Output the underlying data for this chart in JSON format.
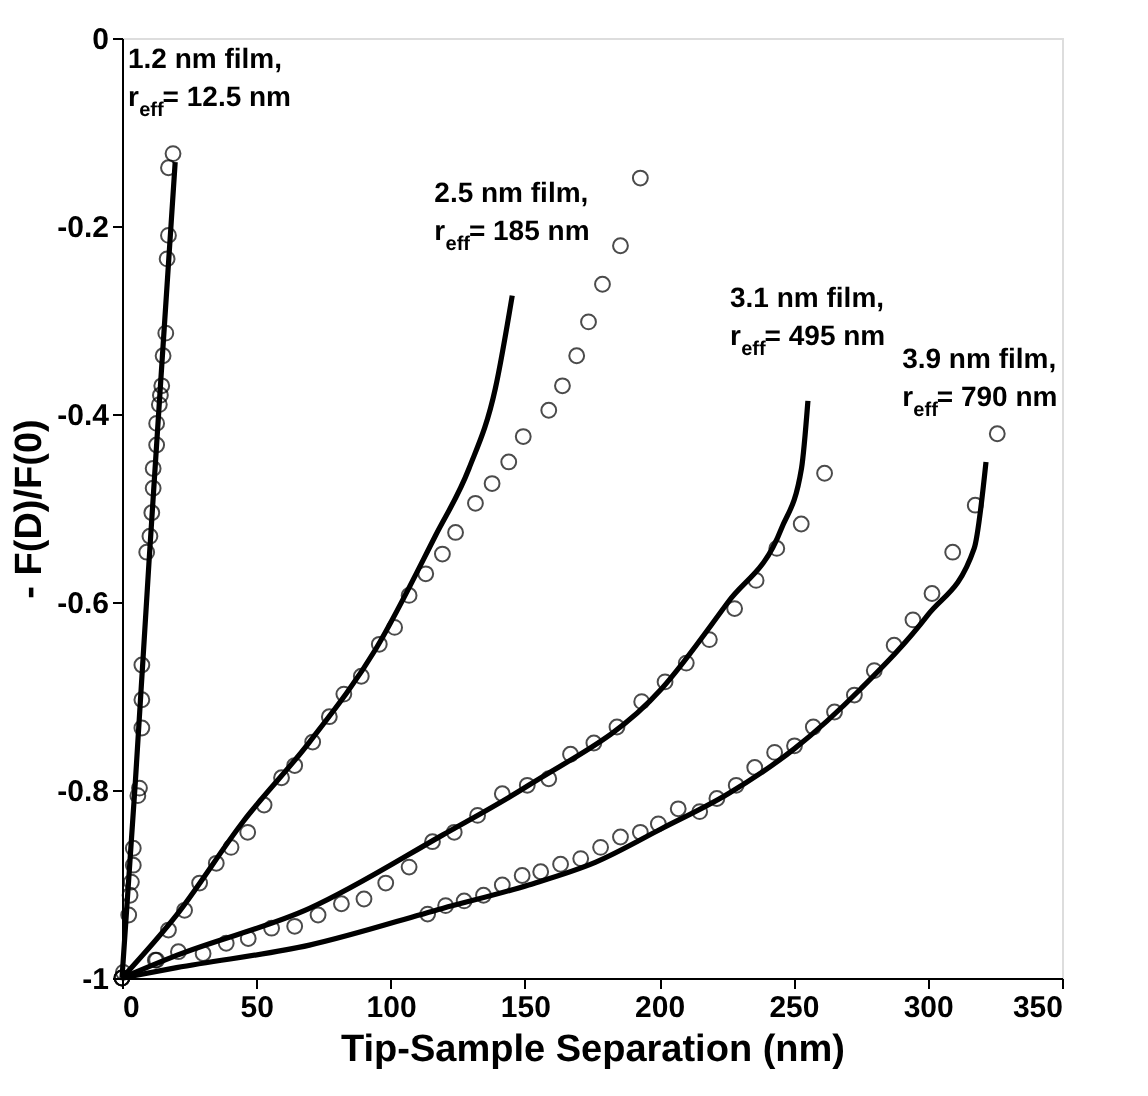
{
  "chart_data": {
    "type": "scatter",
    "xlabel": "Tip-Sample Separation (nm)",
    "ylabel": "- F(D)/F(0)",
    "xlim": [
      0,
      350
    ],
    "xticks": [
      0,
      50,
      100,
      150,
      200,
      250,
      300,
      350
    ],
    "ylim": [
      -1,
      0
    ],
    "yticks": [
      -1,
      -0.8,
      -0.6,
      -0.4,
      -0.2,
      0
    ],
    "grid": false,
    "series": [
      {
        "type": "scatter",
        "marker": "circle",
        "color": "#000000",
        "x": [
          0,
          0.5,
          2.5,
          3,
          3.5,
          4.2,
          4.2,
          5.9,
          6.5,
          7.4,
          7.4,
          7.4,
          9.2,
          10.4,
          11.1,
          11.6,
          11.6,
          12.9,
          12.9,
          13.9,
          14.3,
          14.8,
          15.3,
          16.3,
          16.8,
          17.3,
          17.3,
          19
        ],
        "values": [
          -1,
          -0.994,
          -0.933,
          -0.912,
          -0.898,
          -0.88,
          -0.862,
          -0.806,
          -0.798,
          -0.734,
          -0.704,
          -0.667,
          -0.547,
          -0.53,
          -0.505,
          -0.479,
          -0.458,
          -0.433,
          -0.41,
          -0.39,
          -0.38,
          -0.37,
          -0.338,
          -0.314,
          -0.235,
          -0.21,
          -0.138,
          -0.123
        ]
      },
      {
        "type": "line",
        "marker": "none",
        "line_style": "solid",
        "color": "#000000",
        "x": [
          0,
          5,
          10,
          15,
          19.8
        ],
        "values": [
          -1,
          -0.79,
          -0.56,
          -0.34,
          -0.132
        ]
      },
      {
        "type": "scatter",
        "marker": "circle",
        "color": "#000000",
        "x": [
          0,
          12.9,
          17.3,
          23.3,
          28.9,
          35.1,
          40.6,
          46.8,
          52.9,
          59.4,
          64.3,
          71,
          77.2,
          82.6,
          89.1,
          95.8,
          101.5,
          106.9,
          113.1,
          119.3,
          124.2,
          131.6,
          137.8,
          144,
          149.4,
          158.9,
          164,
          169.3,
          173.7,
          178.9,
          185.6,
          193
        ],
        "values": [
          -1,
          -0.981,
          -0.949,
          -0.928,
          -0.899,
          -0.878,
          -0.861,
          -0.845,
          -0.816,
          -0.787,
          -0.774,
          -0.749,
          -0.722,
          -0.698,
          -0.679,
          -0.645,
          -0.627,
          -0.593,
          -0.57,
          -0.549,
          -0.526,
          -0.495,
          -0.474,
          -0.451,
          -0.424,
          -0.396,
          -0.37,
          -0.338,
          -0.302,
          -0.262,
          -0.221,
          -0.149
        ]
      },
      {
        "type": "line",
        "marker": "none",
        "line_style": "solid",
        "color": "#000000",
        "x": [
          0,
          20.3,
          45,
          69.8,
          94.5,
          116.8,
          129.2,
          139,
          145.3
        ],
        "values": [
          -1,
          -0.933,
          -0.834,
          -0.749,
          -0.65,
          -0.529,
          -0.458,
          -0.373,
          -0.274
        ]
      },
      {
        "type": "scatter",
        "marker": "circle",
        "color": "#000000",
        "x": [
          0,
          12.4,
          21,
          30.2,
          38.8,
          47,
          55.7,
          64.3,
          73,
          81.7,
          90.1,
          98.2,
          106.9,
          115.6,
          123.7,
          132.4,
          141.6,
          150.9,
          158.9,
          167,
          175.7,
          184.3,
          193.5,
          202.2,
          210.1,
          218.7,
          228.1,
          236.1,
          243.8,
          252.9,
          261.6
        ],
        "values": [
          -1,
          -0.981,
          -0.972,
          -0.974,
          -0.963,
          -0.958,
          -0.947,
          -0.945,
          -0.933,
          -0.921,
          -0.916,
          -0.899,
          -0.882,
          -0.855,
          -0.845,
          -0.827,
          -0.804,
          -0.795,
          -0.788,
          -0.762,
          -0.75,
          -0.733,
          -0.706,
          -0.685,
          -0.665,
          -0.64,
          -0.607,
          -0.577,
          -0.543,
          -0.517,
          -0.463
        ]
      },
      {
        "type": "line",
        "marker": "none",
        "line_style": "solid",
        "color": "#000000",
        "x": [
          0,
          20.3,
          69.8,
          119.3,
          151.4,
          201,
          225.7,
          245.5,
          253,
          255.4
        ],
        "values": [
          -1,
          -0.976,
          -0.926,
          -0.848,
          -0.795,
          -0.692,
          -0.6,
          -0.522,
          -0.458,
          -0.386
        ]
      },
      {
        "type": "scatter",
        "marker": "circle",
        "color": "#000000",
        "x": [
          113.8,
          120.5,
          127.4,
          134.6,
          141.6,
          149,
          155.9,
          163.3,
          170.8,
          178.2,
          185.6,
          193,
          199.7,
          207.1,
          215.1,
          221.5,
          228.7,
          235.6,
          243,
          250.4,
          257.4,
          265.3,
          272.7,
          280.1,
          287.5,
          294.5,
          301.6,
          309.3,
          317.7,
          325.9
        ],
        "values": [
          -0.932,
          -0.923,
          -0.918,
          -0.912,
          -0.901,
          -0.891,
          -0.887,
          -0.879,
          -0.873,
          -0.861,
          -0.85,
          -0.845,
          -0.836,
          -0.82,
          -0.823,
          -0.809,
          -0.795,
          -0.776,
          -0.76,
          -0.753,
          -0.733,
          -0.717,
          -0.699,
          -0.673,
          -0.646,
          -0.619,
          -0.591,
          -0.547,
          -0.497,
          -0.421
        ]
      },
      {
        "type": "line",
        "marker": "none",
        "line_style": "solid",
        "color": "#000000",
        "x": [
          0,
          20.3,
          69.8,
          119.3,
          151.4,
          176.2,
          201,
          225.7,
          250.4,
          275.2,
          300,
          317.3,
          321.7
        ],
        "values": [
          -1,
          -0.989,
          -0.965,
          -0.926,
          -0.901,
          -0.877,
          -0.841,
          -0.804,
          -0.756,
          -0.692,
          -0.614,
          -0.543,
          -0.451
        ]
      }
    ],
    "annotations": [
      "1.2 nm film,\nr$_{eff}$= 12.5 nm",
      "2.5 nm film,\nr$_{eff}$= 185 nm",
      "3.1 nm film,\nr$_{eff}$= 495 nm",
      "3.9 nm film,\nr$_{eff}$= 790 nm"
    ]
  }
}
